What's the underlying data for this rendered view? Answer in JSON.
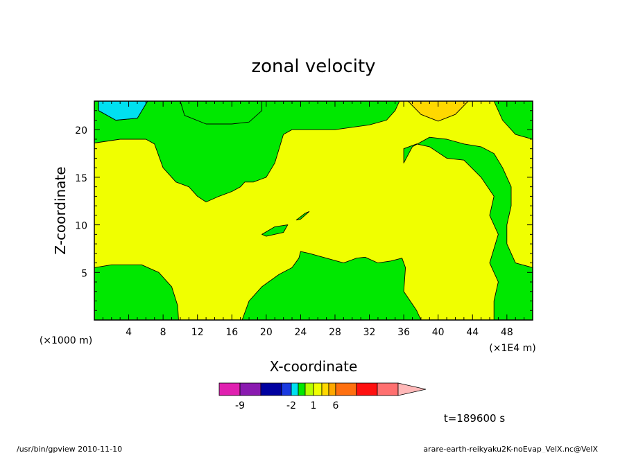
{
  "chart_data": {
    "type": "contour",
    "title": "zonal velocity",
    "xlabel": "X-coordinate",
    "ylabel": "Z-coordinate",
    "xlim": [
      0,
      51
    ],
    "ylim": [
      0,
      23
    ],
    "x_ticks": [
      4,
      8,
      12,
      16,
      20,
      24,
      28,
      32,
      36,
      40,
      44,
      48
    ],
    "y_ticks": [
      5,
      10,
      15,
      20
    ],
    "x_unit_note": "(×1E4 m)",
    "y_unit_note": "(×1000 m)",
    "time_label": "t=189600 s",
    "colorbar": {
      "colors": [
        "#e020b0",
        "#8a1ab0",
        "#0000a0",
        "#1a3ae0",
        "#00e0f0",
        "#00e800",
        "#b8ff00",
        "#f0ff00",
        "#ffd800",
        "#ffa800",
        "#ff7010",
        "#ff1010",
        "#ff7070",
        "#ffb8b8"
      ],
      "labels": [
        {
          "text": "-9",
          "after_box": 1
        },
        {
          "text": "-2",
          "after_box": 4
        },
        {
          "text": "1",
          "after_box": 7
        },
        {
          "text": "6",
          "after_box": 10
        }
      ]
    },
    "regions": [
      {
        "level": "negative",
        "color": "#00e0f0",
        "path": [
          [
            0.5,
            23
          ],
          [
            0.5,
            22
          ],
          [
            2.5,
            21
          ],
          [
            5,
            21.2
          ],
          [
            6.2,
            23
          ]
        ]
      },
      {
        "level": "positive",
        "color": "#ffd800",
        "path": [
          [
            36.5,
            23
          ],
          [
            38,
            21.6
          ],
          [
            40,
            20.9
          ],
          [
            42,
            21.6
          ],
          [
            43.5,
            23
          ]
        ]
      },
      {
        "level": "zero",
        "color": "#00e800",
        "path": [
          [
            0,
            23
          ],
          [
            0.5,
            23
          ],
          [
            0.5,
            22
          ],
          [
            2.5,
            21
          ],
          [
            5,
            21.2
          ],
          [
            6.2,
            23
          ],
          [
            10,
            23
          ],
          [
            10.5,
            21.5
          ],
          [
            13,
            20.6
          ],
          [
            16,
            20.6
          ],
          [
            18,
            20.8
          ],
          [
            19.5,
            22
          ],
          [
            19.5,
            23
          ],
          [
            0,
            23
          ],
          [
            0,
            18.6
          ],
          [
            3,
            19
          ],
          [
            6,
            19
          ],
          [
            7,
            18.5
          ],
          [
            8,
            16
          ],
          [
            9.5,
            14.5
          ],
          [
            11,
            14
          ],
          [
            12,
            13
          ],
          [
            13,
            12.4
          ],
          [
            14.5,
            13
          ],
          [
            16,
            13.5
          ],
          [
            17,
            14
          ],
          [
            17.5,
            14.5
          ],
          [
            18,
            14.5
          ],
          [
            18.5,
            14.5
          ],
          [
            20,
            15
          ],
          [
            21,
            16.5
          ],
          [
            21.5,
            18
          ],
          [
            22,
            19.5
          ],
          [
            23,
            20
          ],
          [
            28,
            20
          ],
          [
            32,
            20.5
          ],
          [
            34,
            21
          ],
          [
            35,
            22
          ],
          [
            35.5,
            23
          ],
          [
            0,
            23
          ]
        ]
      },
      {
        "level": "zero",
        "color": "#00e800",
        "path": [
          [
            46.5,
            23
          ],
          [
            47.5,
            21
          ],
          [
            49,
            19.5
          ],
          [
            51,
            19
          ],
          [
            51,
            23
          ]
        ]
      },
      {
        "level": "zero",
        "color": "#00e800",
        "path": [
          [
            36,
            18
          ],
          [
            37.5,
            18.5
          ],
          [
            39,
            18.2
          ],
          [
            41,
            17
          ],
          [
            43,
            16.8
          ],
          [
            45,
            15
          ],
          [
            46.5,
            13
          ],
          [
            46,
            11
          ],
          [
            47,
            9
          ],
          [
            46,
            6
          ],
          [
            47,
            4
          ],
          [
            46.5,
            2
          ],
          [
            46.5,
            0
          ],
          [
            51,
            0
          ],
          [
            51,
            5.5
          ],
          [
            49,
            6
          ],
          [
            48,
            8
          ],
          [
            48,
            10
          ],
          [
            48.5,
            12
          ],
          [
            48.5,
            14
          ],
          [
            47.5,
            16
          ],
          [
            46.5,
            17.5
          ],
          [
            45,
            18.2
          ],
          [
            43,
            18.5
          ],
          [
            41,
            19
          ],
          [
            39,
            19.2
          ],
          [
            37,
            18.2
          ],
          [
            36,
            16.5
          ],
          [
            36,
            18
          ]
        ]
      },
      {
        "level": "zero",
        "color": "#00e800",
        "path": [
          [
            0,
            0
          ],
          [
            0,
            5.5
          ],
          [
            2,
            5.8
          ],
          [
            5.5,
            5.8
          ],
          [
            7.5,
            5
          ],
          [
            9,
            3.5
          ],
          [
            9.7,
            1.5
          ],
          [
            9.8,
            0
          ]
        ]
      },
      {
        "level": "zero",
        "color": "#00e800",
        "path": [
          [
            17.2,
            0
          ],
          [
            18,
            2
          ],
          [
            19.5,
            3.5
          ],
          [
            21.5,
            4.8
          ],
          [
            23,
            5.5
          ],
          [
            23.8,
            6.5
          ],
          [
            24,
            7.2
          ],
          [
            25,
            7
          ],
          [
            27,
            6.5
          ],
          [
            29,
            6
          ],
          [
            30.5,
            6.5
          ],
          [
            31.5,
            6.6
          ],
          [
            33,
            6
          ],
          [
            34.5,
            6.2
          ],
          [
            35.8,
            6.5
          ],
          [
            36.2,
            5.5
          ],
          [
            36,
            3
          ],
          [
            37.5,
            1
          ],
          [
            38,
            0
          ]
        ]
      },
      {
        "level": "zero",
        "color": "#00e800",
        "path": [
          [
            19.5,
            9
          ],
          [
            21,
            9.8
          ],
          [
            22.5,
            10
          ],
          [
            22,
            9.2
          ],
          [
            20,
            8.8
          ]
        ]
      },
      {
        "level": "zero",
        "color": "#00e800",
        "path": [
          [
            23.5,
            10.5
          ],
          [
            24.5,
            11.2
          ],
          [
            25,
            11.4
          ],
          [
            24,
            10.6
          ]
        ]
      }
    ]
  },
  "footer": {
    "left": "/usr/bin/gpview   2010-11-10",
    "right": "arare-earth-reikyaku2K-noEvap_VelX.nc@VelX"
  }
}
